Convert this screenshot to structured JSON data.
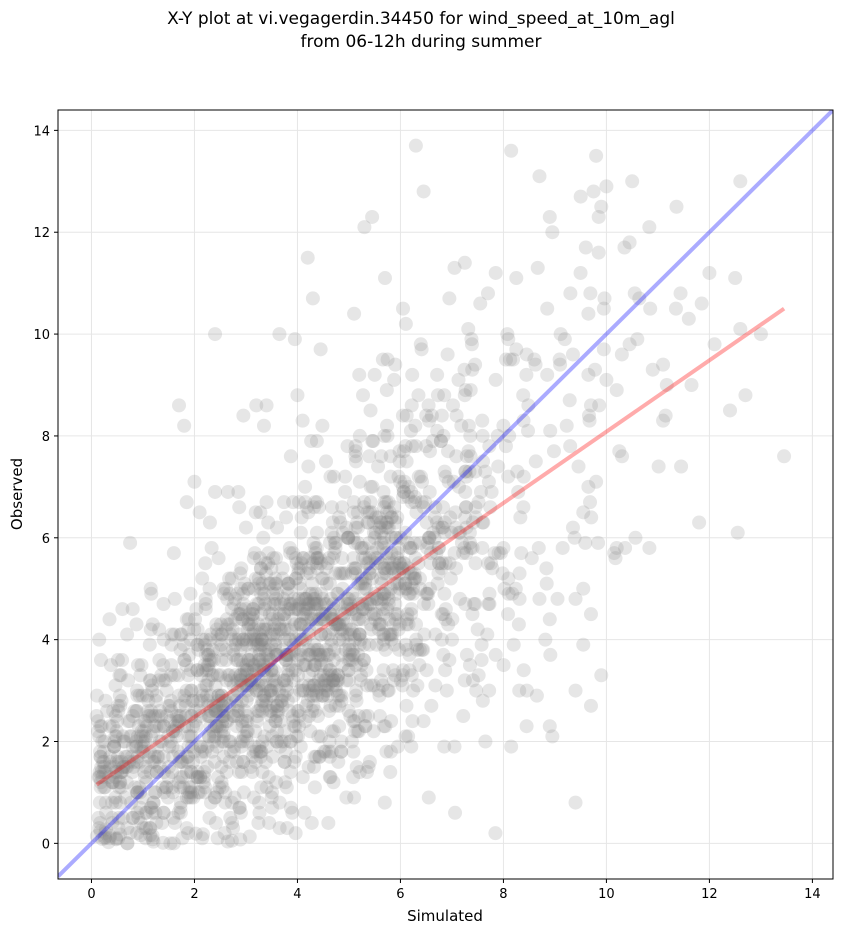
{
  "chart_data": {
    "type": "scatter",
    "title": "X-Y plot at vi.vegagerdin.34450 for wind_speed_at_10m_agl",
    "subtitle": "from 06-12h during summer",
    "xlabel": "Simulated",
    "ylabel": "Observed",
    "xlim": [
      -0.65,
      14.4
    ],
    "ylim": [
      -0.7,
      14.4
    ],
    "xticks": [
      0,
      2,
      4,
      6,
      8,
      10,
      12,
      14
    ],
    "yticks": [
      0,
      2,
      4,
      6,
      8,
      10,
      12,
      14
    ],
    "grid": true,
    "marker_color": "#808080",
    "identity_line": {
      "color": "#0000ff",
      "from": [
        -0.65,
        -0.65
      ],
      "to": [
        14.4,
        14.4
      ]
    },
    "regression_line": {
      "color": "#ff0000",
      "from": [
        0.1,
        1.15
      ],
      "to": [
        13.45,
        10.5
      ]
    },
    "outliers": [
      [
        6.3,
        13.7
      ],
      [
        8.15,
        13.6
      ],
      [
        9.8,
        13.5
      ],
      [
        8.7,
        13.1
      ],
      [
        10.5,
        13.0
      ],
      [
        6.45,
        12.8
      ],
      [
        12.6,
        13.0
      ],
      [
        9.5,
        12.7
      ],
      [
        9.75,
        12.8
      ],
      [
        10.0,
        12.9
      ],
      [
        9.9,
        12.5
      ],
      [
        9.85,
        12.3
      ],
      [
        5.3,
        12.1
      ],
      [
        5.45,
        12.3
      ],
      [
        8.9,
        12.3
      ],
      [
        8.95,
        12.0
      ],
      [
        7.05,
        11.3
      ],
      [
        7.25,
        11.4
      ],
      [
        9.6,
        11.7
      ],
      [
        10.45,
        11.8
      ],
      [
        10.35,
        11.7
      ],
      [
        9.85,
        11.6
      ],
      [
        12.0,
        11.2
      ],
      [
        12.5,
        11.1
      ],
      [
        4.2,
        11.5
      ],
      [
        5.7,
        11.1
      ],
      [
        6.95,
        10.7
      ],
      [
        7.55,
        10.6
      ],
      [
        7.7,
        10.8
      ],
      [
        7.85,
        11.2
      ],
      [
        8.25,
        11.1
      ],
      [
        8.85,
        10.5
      ],
      [
        9.3,
        10.8
      ],
      [
        9.65,
        10.4
      ],
      [
        9.95,
        10.5
      ],
      [
        10.55,
        10.8
      ],
      [
        10.85,
        10.5
      ],
      [
        11.35,
        10.5
      ],
      [
        11.6,
        10.3
      ],
      [
        11.85,
        10.6
      ],
      [
        12.6,
        10.1
      ],
      [
        13.0,
        10.0
      ],
      [
        4.3,
        10.7
      ],
      [
        6.05,
        10.5
      ],
      [
        5.1,
        10.4
      ],
      [
        2.4,
        10.0
      ],
      [
        3.65,
        10.0
      ],
      [
        3.95,
        9.9
      ],
      [
        4.45,
        9.7
      ],
      [
        12.1,
        9.8
      ],
      [
        11.1,
        9.4
      ],
      [
        11.15,
        8.4
      ],
      [
        11.1,
        8.3
      ],
      [
        9.7,
        8.6
      ],
      [
        12.4,
        8.5
      ],
      [
        12.7,
        8.8
      ],
      [
        13.45,
        7.6
      ],
      [
        11.45,
        7.4
      ],
      [
        12.55,
        6.1
      ],
      [
        11.8,
        6.3
      ],
      [
        10.2,
        5.8
      ],
      [
        10.15,
        5.7
      ],
      [
        9.05,
        4.8
      ],
      [
        9.4,
        4.8
      ],
      [
        9.55,
        5.0
      ],
      [
        9.7,
        4.5
      ],
      [
        8.9,
        4.4
      ],
      [
        9.4,
        3.0
      ],
      [
        9.55,
        3.9
      ],
      [
        9.9,
        3.3
      ],
      [
        9.4,
        0.8
      ],
      [
        9.7,
        2.7
      ],
      [
        8.9,
        2.3
      ],
      [
        8.95,
        2.1
      ],
      [
        8.45,
        2.3
      ],
      [
        8.65,
        2.9
      ],
      [
        8.15,
        1.9
      ],
      [
        7.65,
        2.0
      ],
      [
        7.6,
        2.8
      ],
      [
        6.55,
        0.9
      ],
      [
        7.05,
        1.9
      ],
      [
        6.85,
        1.9
      ],
      [
        4.6,
        0.4
      ],
      [
        1.7,
        8.6
      ],
      [
        1.8,
        8.2
      ],
      [
        1.85,
        6.7
      ],
      [
        2.95,
        8.4
      ],
      [
        3.2,
        8.6
      ],
      [
        3.35,
        8.2
      ],
      [
        3.4,
        8.6
      ],
      [
        4.0,
        8.8
      ],
      [
        4.1,
        8.3
      ],
      [
        2.4,
        6.9
      ],
      [
        0.75,
        5.9
      ],
      [
        0.1,
        2.5
      ],
      [
        0.15,
        4.0
      ],
      [
        0.35,
        4.4
      ],
      [
        0.6,
        4.6
      ],
      [
        0.8,
        4.6
      ],
      [
        1.15,
        5.0
      ],
      [
        1.6,
        5.7
      ],
      [
        1.4,
        4.7
      ],
      [
        2.65,
        6.9
      ],
      [
        2.0,
        7.1
      ],
      [
        2.1,
        6.5
      ],
      [
        2.3,
        6.3
      ],
      [
        3.0,
        6.2
      ],
      [
        3.4,
        6.7
      ],
      [
        5.2,
        9.2
      ],
      [
        5.5,
        9.2
      ],
      [
        5.75,
        9.5
      ],
      [
        5.9,
        9.4
      ],
      [
        6.35,
        8.8
      ],
      [
        6.5,
        8.4
      ],
      [
        6.85,
        8.8
      ],
      [
        7.25,
        8.8
      ],
      [
        7.45,
        9.4
      ],
      [
        7.85,
        9.1
      ],
      [
        8.05,
        9.5
      ],
      [
        8.25,
        9.7
      ],
      [
        8.45,
        9.6
      ],
      [
        8.6,
        9.5
      ],
      [
        8.85,
        9.2
      ],
      [
        9.1,
        9.4
      ],
      [
        9.35,
        9.6
      ],
      [
        9.65,
        9.2
      ],
      [
        9.95,
        9.7
      ],
      [
        10.3,
        9.6
      ],
      [
        10.6,
        9.9
      ],
      [
        10.9,
        9.3
      ],
      [
        10.2,
        8.9
      ],
      [
        10.25,
        7.7
      ],
      [
        9.8,
        7.1
      ],
      [
        9.55,
        6.5
      ],
      [
        9.65,
        7.0
      ],
      [
        9.35,
        6.2
      ],
      [
        9.15,
        5.8
      ],
      [
        8.55,
        5.6
      ],
      [
        8.1,
        4.9
      ],
      [
        8.3,
        4.3
      ],
      [
        7.85,
        3.7
      ],
      [
        7.35,
        3.5
      ],
      [
        7.25,
        3.2
      ],
      [
        6.95,
        3.6
      ],
      [
        6.45,
        2.4
      ],
      [
        6.6,
        2.7
      ],
      [
        5.95,
        1.9
      ],
      [
        5.35,
        1.4
      ],
      [
        4.95,
        0.9
      ],
      [
        5.1,
        0.9
      ],
      [
        5.15,
        1.5
      ],
      [
        4.7,
        1.2
      ],
      [
        3.9,
        0.6
      ],
      [
        3.8,
        0.3
      ],
      [
        3.45,
        0.4
      ],
      [
        3.5,
        0.9
      ],
      [
        2.9,
        0.6
      ],
      [
        2.75,
        0.3
      ],
      [
        2.45,
        0.1
      ],
      [
        2.15,
        0.1
      ],
      [
        1.85,
        0.3
      ],
      [
        1.6,
        0.0
      ],
      [
        1.05,
        0.1
      ],
      [
        0.7,
        0.0
      ],
      [
        0.35,
        0.1
      ],
      [
        0.15,
        0.3
      ],
      [
        0.25,
        1.5
      ],
      [
        0.45,
        2.0
      ],
      [
        0.55,
        2.9
      ],
      [
        0.9,
        2.1
      ],
      [
        0.8,
        0.5
      ],
      [
        1.2,
        0.8
      ],
      [
        2.25,
        1.5
      ],
      [
        2.6,
        1.0
      ],
      [
        3.2,
        1.8
      ],
      [
        3.75,
        1.6
      ],
      [
        4.25,
        2.2
      ],
      [
        4.85,
        1.8
      ],
      [
        5.6,
        2.5
      ],
      [
        6.15,
        2.1
      ],
      [
        6.9,
        3.0
      ],
      [
        7.5,
        4.2
      ],
      [
        8.2,
        3.9
      ],
      [
        8.7,
        4.8
      ],
      [
        10.0,
        9.1
      ],
      [
        10.45,
        9.8
      ]
    ]
  }
}
